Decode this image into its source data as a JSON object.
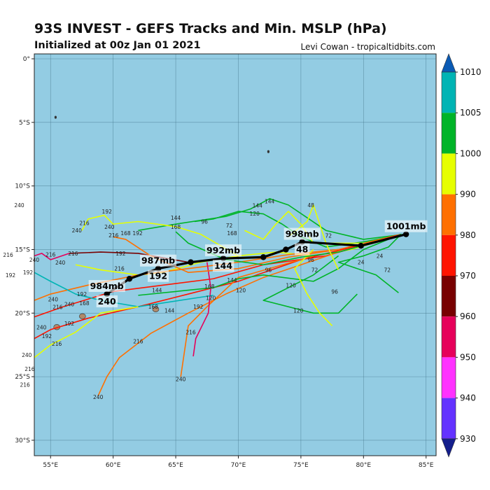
{
  "header": {
    "title": "93S INVEST - GEFS Tracks and Min. MSLP (hPa)",
    "subtitle": "Initialized at 00z Jan 01 2021",
    "credit": "Levi Cowan - tropicaltidbits.com"
  },
  "chart_data": {
    "type": "track map",
    "lon_range": [
      53.7,
      85.8
    ],
    "lat_range_south": [
      0,
      31.6
    ],
    "lon_ticks": [
      55,
      60,
      65,
      70,
      75,
      80,
      85
    ],
    "lon_tick_labels": [
      "55°E",
      "60°E",
      "65°E",
      "70°E",
      "75°E",
      "80°E",
      "85°E"
    ],
    "lat_ticks": [
      0,
      5,
      10,
      15,
      20,
      25,
      30
    ],
    "lat_tick_labels": [
      "0°",
      "5°S",
      "10°S",
      "15°S",
      "20°S",
      "25°S",
      "30°S"
    ],
    "grid": true,
    "ocean_color": "#93cce3",
    "land_color": "#b08a6a",
    "colorbar": {
      "position": "right",
      "ticks": [
        1010,
        1005,
        1000,
        990,
        980,
        970,
        960,
        950,
        940,
        930
      ],
      "tick_labels": [
        "1010",
        "1005",
        "1000",
        "990",
        "980",
        "970",
        "960",
        "950",
        "940",
        "930"
      ],
      "over_color": "#0a5ab4",
      "under_color": "#141e8c",
      "bins": [
        {
          "range": [
            1005,
            1010
          ],
          "color": "#00b4b4"
        },
        {
          "range": [
            1000,
            1005
          ],
          "color": "#00b428"
        },
        {
          "range": [
            990,
            1000
          ],
          "color": "#e6ff00"
        },
        {
          "range": [
            980,
            990
          ],
          "color": "#ff7000"
        },
        {
          "range": [
            970,
            980
          ],
          "color": "#ff1400"
        },
        {
          "range": [
            960,
            970
          ],
          "color": "#780000"
        },
        {
          "range": [
            950,
            960
          ],
          "color": "#e6005a"
        },
        {
          "range": [
            940,
            950
          ],
          "color": "#ff32ff"
        },
        {
          "range": [
            930,
            940
          ],
          "color": "#6432ff"
        }
      ]
    },
    "islands": [
      {
        "name": "Mauritius",
        "lon": 57.55,
        "lat": 20.25
      },
      {
        "name": "Reunion",
        "lon": 55.5,
        "lat": 21.1
      },
      {
        "name": "Rodrigues",
        "lon": 63.4,
        "lat": 19.7
      },
      {
        "name": "islet",
        "lon": 55.4,
        "lat": 4.6
      },
      {
        "name": "islet",
        "lon": 72.4,
        "lat": 7.3
      }
    ],
    "mean_track": {
      "points": [
        [
          83.4,
          13.8
        ],
        [
          79.8,
          14.7
        ],
        [
          75.1,
          14.4
        ],
        [
          73.8,
          15.0
        ],
        [
          72.0,
          15.6
        ],
        [
          68.8,
          15.7
        ],
        [
          66.2,
          16.0
        ],
        [
          63.6,
          16.5
        ],
        [
          61.3,
          17.3
        ],
        [
          59.5,
          18.5
        ]
      ],
      "labels": [
        {
          "pressure": "1001mb",
          "hour": "",
          "lon": 83.4,
          "lat": 13.8
        },
        {
          "pressure": "998mb",
          "hour": "48",
          "lon": 75.1,
          "lat": 14.4
        },
        {
          "pressure": "992mb",
          "hour": "144",
          "lon": 68.8,
          "lat": 15.7
        },
        {
          "pressure": "987mb",
          "hour": "192",
          "lon": 63.6,
          "lat": 16.5
        },
        {
          "pressure": "984mb",
          "hour": "240",
          "lon": 59.5,
          "lat": 18.5
        }
      ]
    },
    "members": [
      {
        "color": "#00b428",
        "points": [
          [
            83.3,
            13.8
          ],
          [
            80,
            14.4
          ],
          [
            77,
            14.8
          ],
          [
            75,
            14
          ],
          [
            73.5,
            13
          ],
          [
            72,
            12.2
          ],
          [
            70,
            12
          ],
          [
            68,
            12.6
          ],
          [
            66.5,
            12.8
          ]
        ]
      },
      {
        "color": "#00b428",
        "points": [
          [
            83.3,
            13.8
          ],
          [
            80,
            14.2
          ],
          [
            77,
            13.5
          ],
          [
            75.5,
            12.5
          ],
          [
            74,
            11.5
          ],
          [
            72.5,
            11
          ],
          [
            71,
            11.8
          ],
          [
            69,
            12.4
          ],
          [
            65,
            13.0
          ],
          [
            62,
            13.5
          ]
        ]
      },
      {
        "color": "#e6ff00",
        "points": [
          [
            83.3,
            13.8
          ],
          [
            79,
            15
          ],
          [
            76,
            15.5
          ],
          [
            73,
            15.2
          ],
          [
            70,
            15.5
          ],
          [
            67,
            16
          ],
          [
            64,
            16.8
          ],
          [
            62,
            17
          ],
          [
            59,
            16.6
          ],
          [
            57,
            16.2
          ]
        ]
      },
      {
        "color": "#ff7000",
        "points": [
          [
            83,
            13.8
          ],
          [
            78,
            15
          ],
          [
            74,
            15.4
          ],
          [
            70,
            16
          ],
          [
            66,
            16.5
          ],
          [
            62,
            17
          ],
          [
            58,
            17.8
          ],
          [
            55,
            18.5
          ],
          [
            53.7,
            19
          ]
        ]
      },
      {
        "color": "#ff1400",
        "points": [
          [
            83,
            13.8
          ],
          [
            77,
            15.5
          ],
          [
            72,
            16.2
          ],
          [
            68,
            17.3
          ],
          [
            64,
            17.8
          ],
          [
            60,
            18.3
          ],
          [
            56,
            19.5
          ],
          [
            53.7,
            20.3
          ]
        ]
      },
      {
        "color": "#ff1400",
        "points": [
          [
            80,
            14.6
          ],
          [
            75,
            15.8
          ],
          [
            70,
            17.5
          ],
          [
            66,
            18.5
          ],
          [
            62,
            19.5
          ],
          [
            58,
            20.4
          ],
          [
            55,
            21.3
          ],
          [
            53.7,
            22
          ]
        ]
      },
      {
        "color": "#ff7000",
        "points": [
          [
            78,
            15.2
          ],
          [
            72,
            17.2
          ],
          [
            69,
            18.5
          ],
          [
            66,
            20
          ],
          [
            63,
            21.6
          ],
          [
            60.5,
            23.5
          ],
          [
            59.5,
            25
          ],
          [
            58.8,
            26.5
          ]
        ]
      },
      {
        "color": "#ff7000",
        "points": [
          [
            76,
            15.5
          ],
          [
            70,
            17.2
          ],
          [
            67.5,
            19.5
          ],
          [
            66,
            21
          ],
          [
            65.7,
            23
          ],
          [
            65.4,
            25
          ]
        ]
      },
      {
        "color": "#e6005a",
        "points": [
          [
            67.5,
            16
          ],
          [
            67.8,
            18
          ],
          [
            67.6,
            20
          ],
          [
            66.6,
            22
          ],
          [
            66.4,
            23.4
          ]
        ]
      },
      {
        "color": "#780000",
        "points": [
          [
            70,
            15.6
          ],
          [
            66,
            16
          ],
          [
            62,
            15.3
          ],
          [
            59,
            15.2
          ],
          [
            56.5,
            15.3
          ]
        ]
      },
      {
        "color": "#e6005a",
        "points": [
          [
            56.5,
            15.3
          ],
          [
            55,
            15.8
          ],
          [
            54.3,
            15.3
          ],
          [
            53.7,
            15.5
          ]
        ]
      },
      {
        "color": "#00b4b4",
        "points": [
          [
            68,
            18.6
          ],
          [
            62,
            19.5
          ],
          [
            59,
            19
          ],
          [
            57,
            18.5
          ],
          [
            55,
            17.5
          ],
          [
            53.7,
            16.8
          ]
        ]
      },
      {
        "color": "#e6ff00",
        "points": [
          [
            70,
            15.5
          ],
          [
            67,
            13.8
          ],
          [
            65,
            13.2
          ],
          [
            62,
            12.8
          ],
          [
            60,
            13
          ],
          [
            59.3,
            12.3
          ],
          [
            58,
            12.6
          ],
          [
            57.5,
            13.5
          ]
        ]
      },
      {
        "color": "#00b428",
        "points": [
          [
            83,
            13.8
          ],
          [
            80,
            15
          ],
          [
            78,
            16.5
          ],
          [
            76,
            17.5
          ],
          [
            72,
            17
          ],
          [
            70,
            17.3
          ],
          [
            68,
            18
          ],
          [
            62,
            18.6
          ]
        ]
      },
      {
        "color": "#00b428",
        "points": [
          [
            78,
            15.5
          ],
          [
            76,
            17
          ],
          [
            74,
            18
          ],
          [
            72,
            19
          ],
          [
            76,
            20
          ],
          [
            78,
            20
          ],
          [
            79.5,
            18.5
          ]
        ]
      },
      {
        "color": "#00b428",
        "points": [
          [
            83,
            13.8
          ],
          [
            82,
            14.8
          ],
          [
            80,
            15.5
          ],
          [
            78,
            16
          ],
          [
            81,
            17
          ],
          [
            82.8,
            18.4
          ]
        ]
      },
      {
        "color": "#e6ff00",
        "points": [
          [
            80,
            14.5
          ],
          [
            76,
            14.5
          ],
          [
            75,
            13
          ],
          [
            74,
            12
          ],
          [
            73,
            13
          ],
          [
            72,
            14.2
          ],
          [
            70.5,
            13.5
          ]
        ]
      },
      {
        "color": "#e6ff00",
        "points": [
          [
            76,
            15
          ],
          [
            74.5,
            16.5
          ],
          [
            75.5,
            18.5
          ],
          [
            76.5,
            20
          ],
          [
            77.5,
            21
          ]
        ]
      },
      {
        "color": "#ff7000",
        "points": [
          [
            78,
            15
          ],
          [
            74,
            15.6
          ],
          [
            70,
            16.5
          ],
          [
            66,
            16.8
          ],
          [
            63,
            15.5
          ],
          [
            61,
            14.2
          ],
          [
            60,
            14
          ]
        ]
      },
      {
        "color": "#e6ff00",
        "points": [
          [
            62,
            19.5
          ],
          [
            59,
            20
          ],
          [
            57,
            21.5
          ],
          [
            55,
            22.5
          ],
          [
            53.7,
            23.5
          ]
        ]
      },
      {
        "color": "#00b428",
        "points": [
          [
            83.3,
            13.8
          ],
          [
            78,
            15.2
          ],
          [
            75,
            15.6
          ],
          [
            72,
            16.2
          ],
          [
            69,
            15.8
          ],
          [
            66,
            14.5
          ],
          [
            65,
            13.6
          ]
        ]
      },
      {
        "color": "#e6ff00",
        "points": [
          [
            74,
            14
          ],
          [
            75.5,
            12.8
          ],
          [
            76,
            11.5
          ],
          [
            76.5,
            13
          ],
          [
            77,
            14.5
          ],
          [
            78,
            16.6
          ]
        ]
      }
    ],
    "hour_labels": [
      [
        "144",
        72.5,
        11.2
      ],
      [
        "168",
        65,
        13.2
      ],
      [
        "96",
        67.3,
        12.8
      ],
      [
        "144",
        65,
        12.5
      ],
      [
        "168",
        61,
        13.7
      ],
      [
        "192",
        61,
        13.7
      ],
      [
        "192",
        59.5,
        12
      ],
      [
        "216",
        57.7,
        12.9
      ],
      [
        "240",
        57.1,
        13.5
      ],
      [
        "240",
        59.7,
        13.2
      ],
      [
        "216",
        59.7,
        13.5
      ],
      [
        "192",
        60.6,
        15.3
      ],
      [
        "216",
        56.8,
        15.3
      ],
      [
        "216",
        55,
        15.4
      ],
      [
        "240",
        55.5,
        15.8
      ],
      [
        "240",
        53.7,
        15.8
      ],
      [
        "192",
        53.2,
        16.8
      ],
      [
        "240",
        55.2,
        18.9
      ],
      [
        "216",
        55.4,
        19.4
      ],
      [
        "192",
        57.5,
        18.5
      ],
      [
        "168",
        57.7,
        19.2
      ],
      [
        "240",
        56.5,
        19.3
      ],
      [
        "192",
        56.5,
        20.8
      ],
      [
        "192",
        54.7,
        21.8
      ],
      [
        "216",
        55.5,
        22.4
      ],
      [
        "216",
        62,
        22.2
      ],
      [
        "240",
        58.8,
        26.6
      ],
      [
        "240",
        65.4,
        25.2
      ],
      [
        "216",
        66.2,
        21.5
      ],
      [
        "192",
        66.8,
        19.5
      ],
      [
        "168",
        63.2,
        19.5
      ],
      [
        "144",
        63.5,
        18.2
      ],
      [
        "144",
        64.5,
        19.8
      ],
      [
        "120",
        67.8,
        18.8
      ],
      [
        "144",
        69.5,
        17.4
      ],
      [
        "120",
        70.2,
        18.2
      ],
      [
        "168",
        67.7,
        17.9
      ],
      [
        "96",
        72.4,
        16.6
      ],
      [
        "120",
        74.2,
        17.8
      ],
      [
        "120",
        74.8,
        19.8
      ],
      [
        "96",
        77.7,
        18.3
      ],
      [
        "72",
        76.1,
        16.6
      ],
      [
        "72",
        81.9,
        16.6
      ],
      [
        "96",
        75.8,
        15.8
      ],
      [
        "24",
        79.8,
        16.0
      ],
      [
        "24",
        81.3,
        15.5
      ],
      [
        "72",
        77.2,
        13.9
      ],
      [
        "48",
        75.8,
        11.5
      ],
      [
        "144",
        72.2,
        11.2
      ],
      [
        "120",
        71.3,
        12.0
      ],
      [
        "168",
        69.5,
        13.7
      ],
      [
        "72",
        69.5,
        13.5
      ],
      [
        "216",
        60.5,
        16.5
      ],
      [
        "240",
        54.5,
        21.5
      ],
      [
        "216",
        53.5,
        24.5
      ],
      [
        "240",
        52.5,
        11.5
      ],
      [
        "216",
        52,
        15.3
      ],
      [
        "240",
        53.1,
        23.3
      ],
      [
        "216",
        52.9,
        25.2
      ],
      [
        "192",
        51.8,
        17.0
      ]
    ]
  }
}
